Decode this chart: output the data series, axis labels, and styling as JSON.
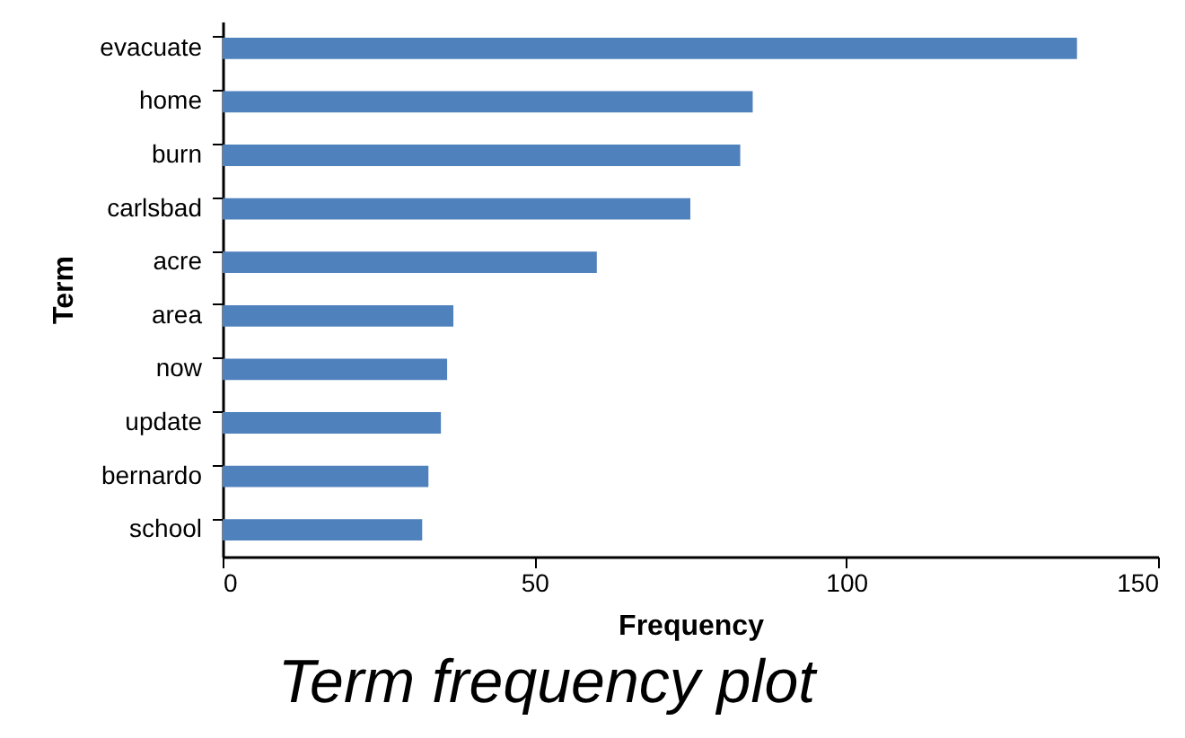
{
  "chart_data": {
    "type": "bar",
    "orientation": "horizontal",
    "title": "Term frequency plot",
    "xlabel": "Frequency",
    "ylabel": "Term",
    "categories": [
      "evacuate",
      "home",
      "burn",
      "carlsbad",
      "acre",
      "area",
      "now",
      "update",
      "bernardo",
      "school"
    ],
    "values": [
      137,
      85,
      83,
      75,
      60,
      37,
      36,
      35,
      33,
      32
    ],
    "color": "#4f81bd",
    "xlim": [
      0,
      150
    ],
    "xticks": [
      0,
      50,
      100,
      150
    ],
    "grid": false
  }
}
